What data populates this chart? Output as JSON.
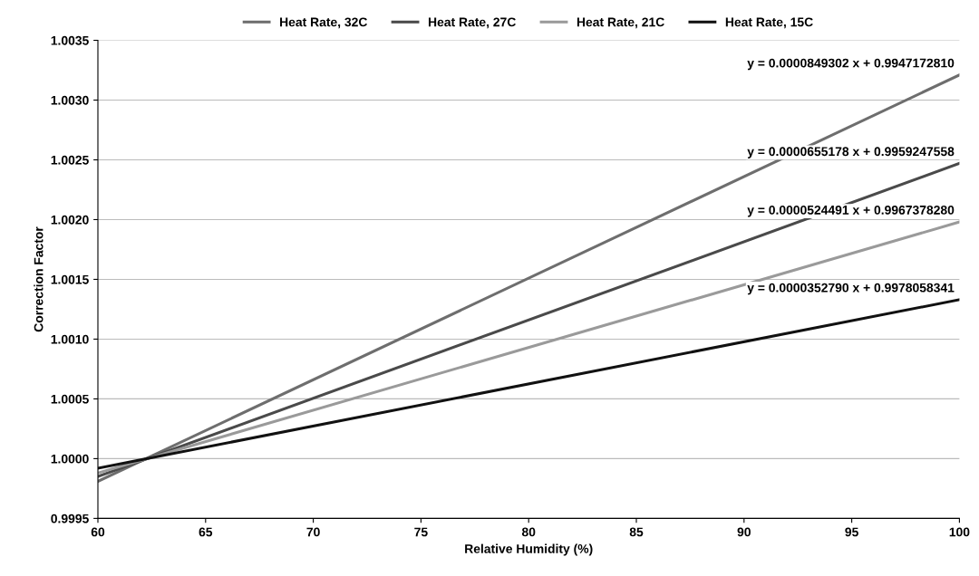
{
  "chart_data": {
    "type": "line",
    "xlabel": "Relative Humidity (%)",
    "ylabel": "Correction Factor",
    "x": [
      60,
      100
    ],
    "series": [
      {
        "name": "Heat Rate, 32C",
        "color": "#6e6e6e",
        "values": [
          0.99981,
          1.00321
        ]
      },
      {
        "name": "Heat Rate, 27C",
        "color": "#4a4a4a",
        "values": [
          0.99985,
          1.00247
        ]
      },
      {
        "name": "Heat Rate, 21C",
        "color": "#9a9a9a",
        "values": [
          0.99988,
          1.00198
        ]
      },
      {
        "name": "Heat Rate, 15C",
        "color": "#111111",
        "values": [
          0.99992,
          1.00133
        ]
      }
    ],
    "annotations": [
      "y = 0.0000849302 x + 0.9947172810",
      "y = 0.0000655178 x + 0.9959247558",
      "y = 0.0000524491 x + 0.9967378280",
      "y = 0.0000352790 x + 0.9978058341"
    ],
    "xlim": [
      60,
      100
    ],
    "xticks": [
      60,
      65,
      70,
      75,
      80,
      85,
      90,
      95,
      100
    ],
    "ylim": [
      0.9995,
      1.0035
    ],
    "yticks": [
      {
        "value": 0.9995,
        "label": "0.9995"
      },
      {
        "value": 1.0,
        "label": "1.0000"
      },
      {
        "value": 1.0005,
        "label": "1.0005"
      },
      {
        "value": 1.001,
        "label": "1.0010"
      },
      {
        "value": 1.0015,
        "label": "1.0015"
      },
      {
        "value": 1.002,
        "label": "1.0020"
      },
      {
        "value": 1.0025,
        "label": "1.0025"
      },
      {
        "value": 1.003,
        "label": "1.0030"
      },
      {
        "value": 1.0035,
        "label": "1.0035"
      }
    ],
    "grid": "y",
    "legend": "top",
    "marker": "none",
    "line_style": "solid"
  }
}
